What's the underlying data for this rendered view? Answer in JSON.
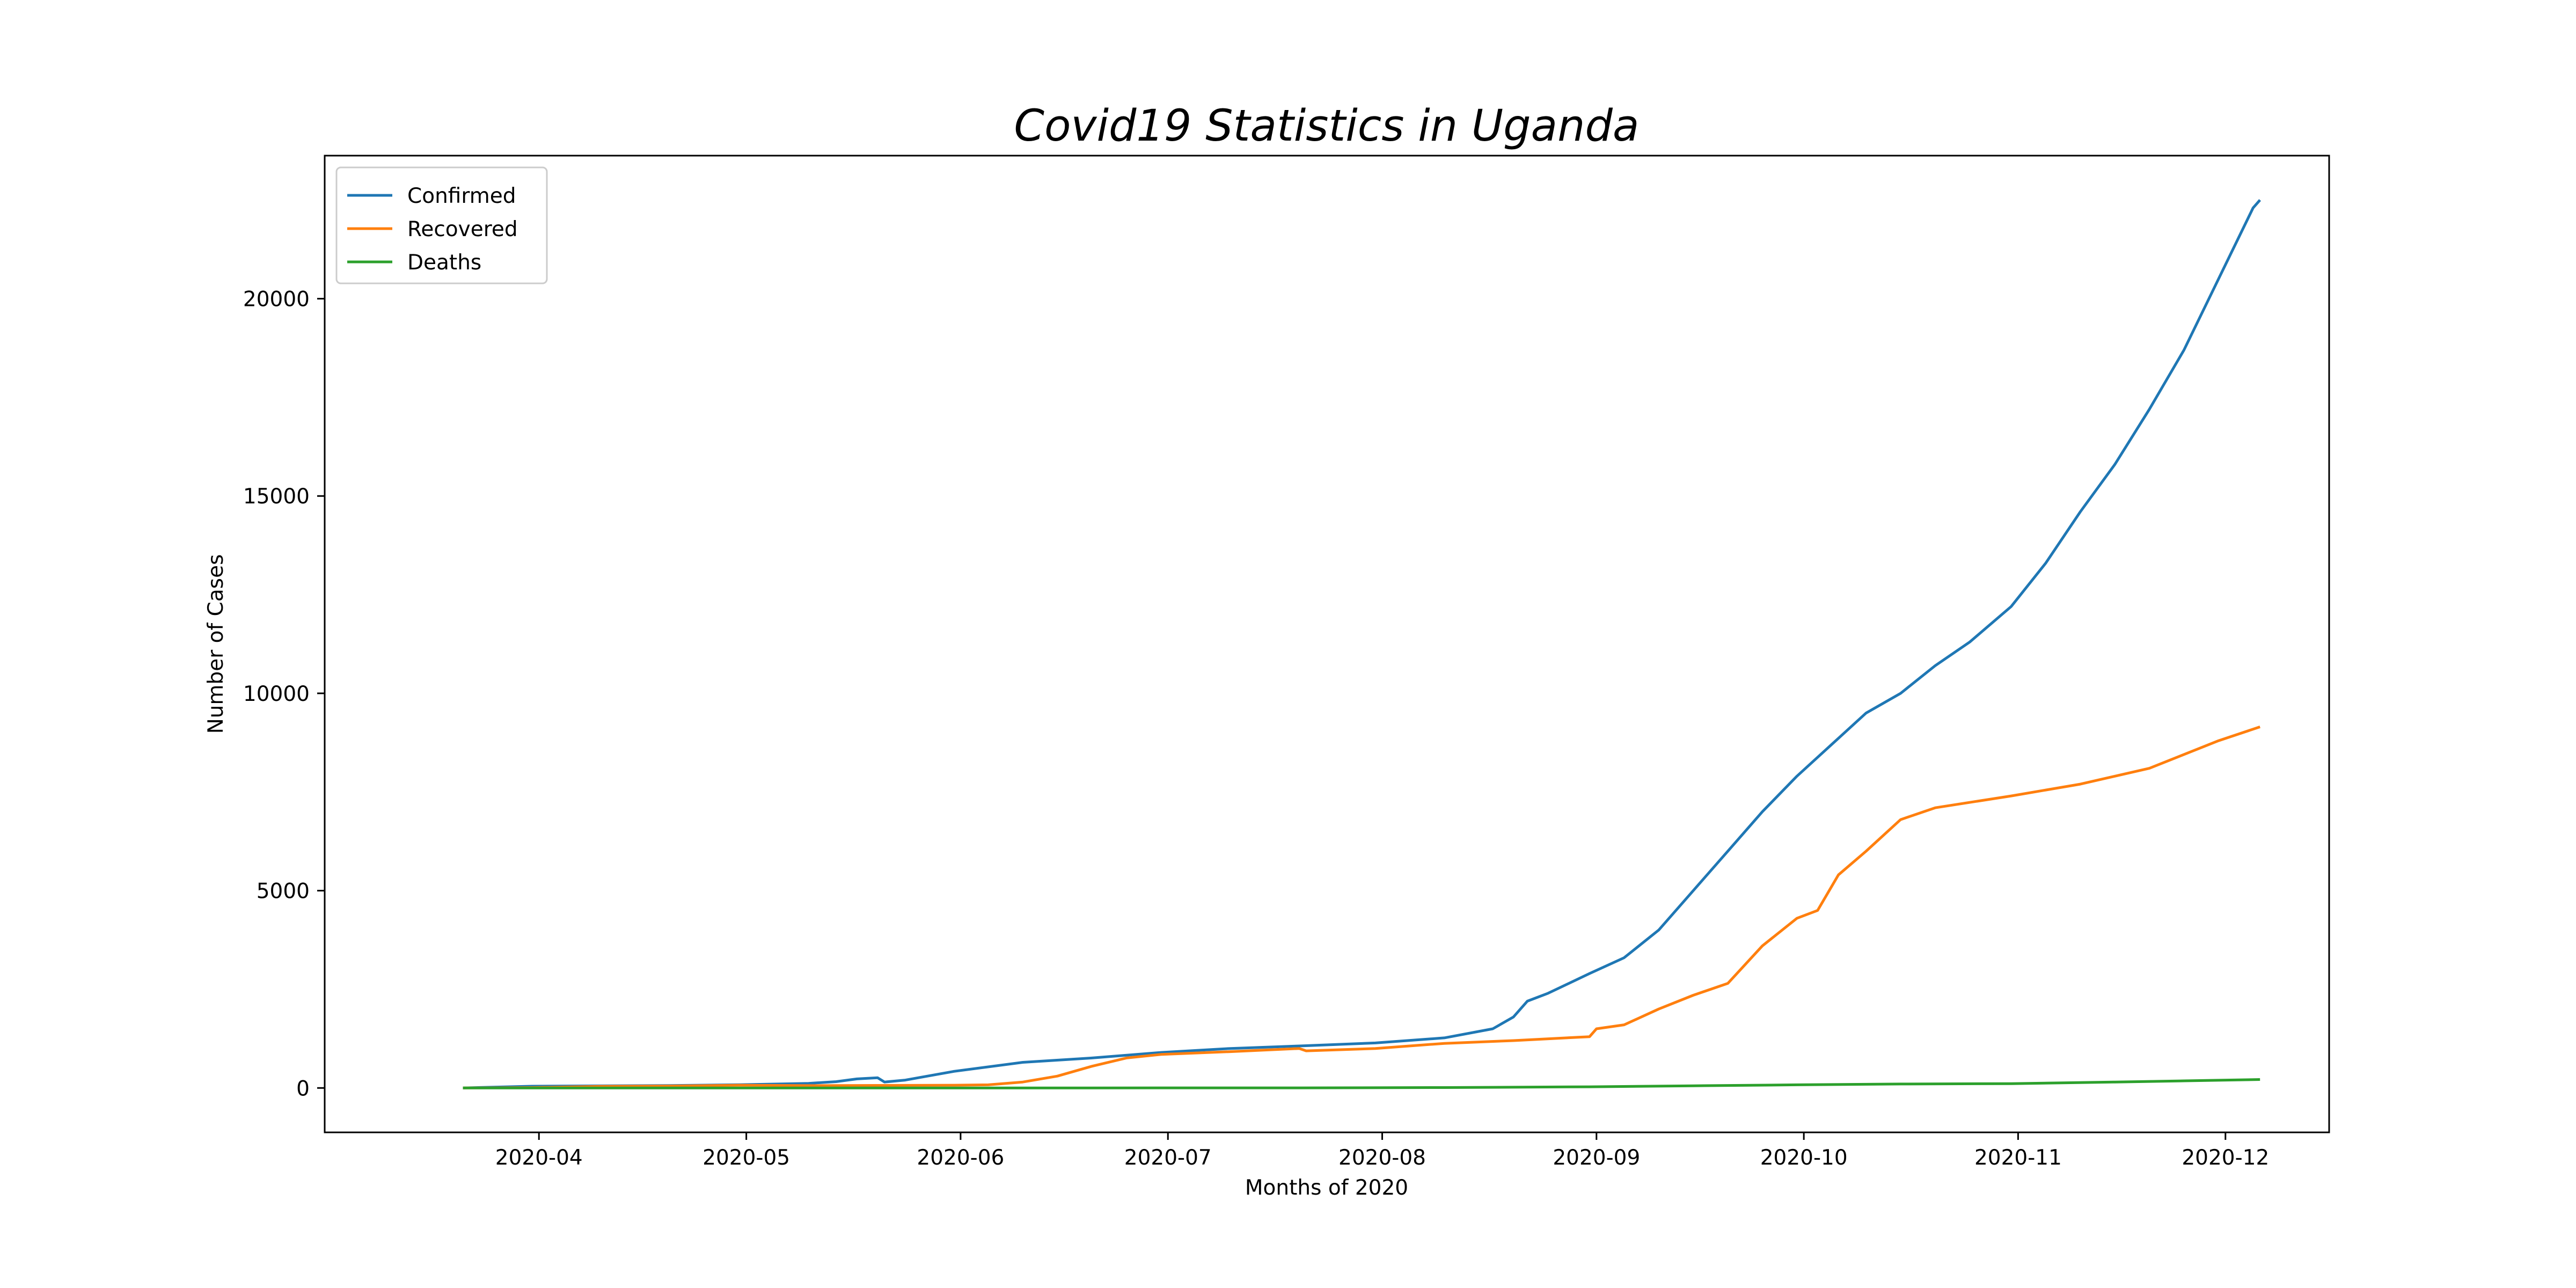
{
  "chart_data": {
    "type": "line",
    "title": "Covid19 Statistics in Uganda",
    "xlabel": "Months of 2020",
    "ylabel": "Number of Cases",
    "x_ticks": [
      "2020-04",
      "2020-05",
      "2020-06",
      "2020-07",
      "2020-08",
      "2020-09",
      "2020-10",
      "2020-11",
      "2020-12"
    ],
    "y_ticks": [
      "0",
      "5000",
      "10000",
      "15000",
      "20000"
    ],
    "xlim": [
      "2020-03-01",
      "2020-12-16"
    ],
    "ylim": [
      -1125,
      23625
    ],
    "grid": false,
    "legend_position": "upper-left",
    "series": [
      {
        "name": "Confirmed",
        "color": "#1f77b4",
        "points": [
          [
            "2020-03-21",
            1
          ],
          [
            "2020-03-31",
            44
          ],
          [
            "2020-04-10",
            53
          ],
          [
            "2020-04-20",
            61
          ],
          [
            "2020-04-30",
            81
          ],
          [
            "2020-05-10",
            116
          ],
          [
            "2020-05-14",
            160
          ],
          [
            "2020-05-17",
            230
          ],
          [
            "2020-05-20",
            260
          ],
          [
            "2020-05-21",
            150
          ],
          [
            "2020-05-24",
            200
          ],
          [
            "2020-05-31",
            420
          ],
          [
            "2020-06-10",
            650
          ],
          [
            "2020-06-20",
            760
          ],
          [
            "2020-06-30",
            900
          ],
          [
            "2020-07-10",
            1000
          ],
          [
            "2020-07-20",
            1065
          ],
          [
            "2020-07-31",
            1140
          ],
          [
            "2020-08-10",
            1270
          ],
          [
            "2020-08-17",
            1500
          ],
          [
            "2020-08-20",
            1800
          ],
          [
            "2020-08-22",
            2200
          ],
          [
            "2020-08-25",
            2400
          ],
          [
            "2020-08-31",
            2900
          ],
          [
            "2020-09-05",
            3300
          ],
          [
            "2020-09-10",
            4000
          ],
          [
            "2020-09-15",
            5000
          ],
          [
            "2020-09-20",
            6000
          ],
          [
            "2020-09-25",
            7000
          ],
          [
            "2020-09-30",
            7900
          ],
          [
            "2020-10-05",
            8700
          ],
          [
            "2020-10-10",
            9500
          ],
          [
            "2020-10-15",
            10000
          ],
          [
            "2020-10-20",
            10700
          ],
          [
            "2020-10-25",
            11300
          ],
          [
            "2020-10-31",
            12200
          ],
          [
            "2020-11-05",
            13300
          ],
          [
            "2020-11-10",
            14600
          ],
          [
            "2020-11-15",
            15800
          ],
          [
            "2020-11-20",
            17200
          ],
          [
            "2020-11-25",
            18700
          ],
          [
            "2020-11-30",
            20500
          ],
          [
            "2020-12-05",
            22300
          ],
          [
            "2020-12-06",
            22500
          ]
        ]
      },
      {
        "name": "Recovered",
        "color": "#ff7f0e",
        "points": [
          [
            "2020-03-21",
            0
          ],
          [
            "2020-03-31",
            10
          ],
          [
            "2020-04-10",
            40
          ],
          [
            "2020-04-20",
            50
          ],
          [
            "2020-04-30",
            70
          ],
          [
            "2020-05-10",
            60
          ],
          [
            "2020-05-20",
            65
          ],
          [
            "2020-05-31",
            70
          ],
          [
            "2020-06-05",
            80
          ],
          [
            "2020-06-10",
            150
          ],
          [
            "2020-06-15",
            300
          ],
          [
            "2020-06-20",
            550
          ],
          [
            "2020-06-25",
            760
          ],
          [
            "2020-06-30",
            850
          ],
          [
            "2020-07-10",
            920
          ],
          [
            "2020-07-20",
            1000
          ],
          [
            "2020-07-21",
            940
          ],
          [
            "2020-07-31",
            1000
          ],
          [
            "2020-08-10",
            1130
          ],
          [
            "2020-08-20",
            1200
          ],
          [
            "2020-08-31",
            1300
          ],
          [
            "2020-09-01",
            1500
          ],
          [
            "2020-09-05",
            1600
          ],
          [
            "2020-09-10",
            2000
          ],
          [
            "2020-09-15",
            2350
          ],
          [
            "2020-09-20",
            2650
          ],
          [
            "2020-09-25",
            3600
          ],
          [
            "2020-09-30",
            4300
          ],
          [
            "2020-10-03",
            4500
          ],
          [
            "2020-10-06",
            5400
          ],
          [
            "2020-10-10",
            6000
          ],
          [
            "2020-10-15",
            6800
          ],
          [
            "2020-10-20",
            7100
          ],
          [
            "2020-10-31",
            7400
          ],
          [
            "2020-11-10",
            7700
          ],
          [
            "2020-11-20",
            8100
          ],
          [
            "2020-11-30",
            8800
          ],
          [
            "2020-12-06",
            9150
          ]
        ]
      },
      {
        "name": "Deaths",
        "color": "#2ca02c",
        "points": [
          [
            "2020-03-21",
            0
          ],
          [
            "2020-05-20",
            0
          ],
          [
            "2020-07-20",
            3
          ],
          [
            "2020-08-10",
            10
          ],
          [
            "2020-08-31",
            30
          ],
          [
            "2020-09-15",
            55
          ],
          [
            "2020-09-30",
            80
          ],
          [
            "2020-10-15",
            100
          ],
          [
            "2020-10-31",
            110
          ],
          [
            "2020-11-15",
            150
          ],
          [
            "2020-11-25",
            180
          ],
          [
            "2020-12-06",
            215
          ]
        ]
      }
    ]
  }
}
